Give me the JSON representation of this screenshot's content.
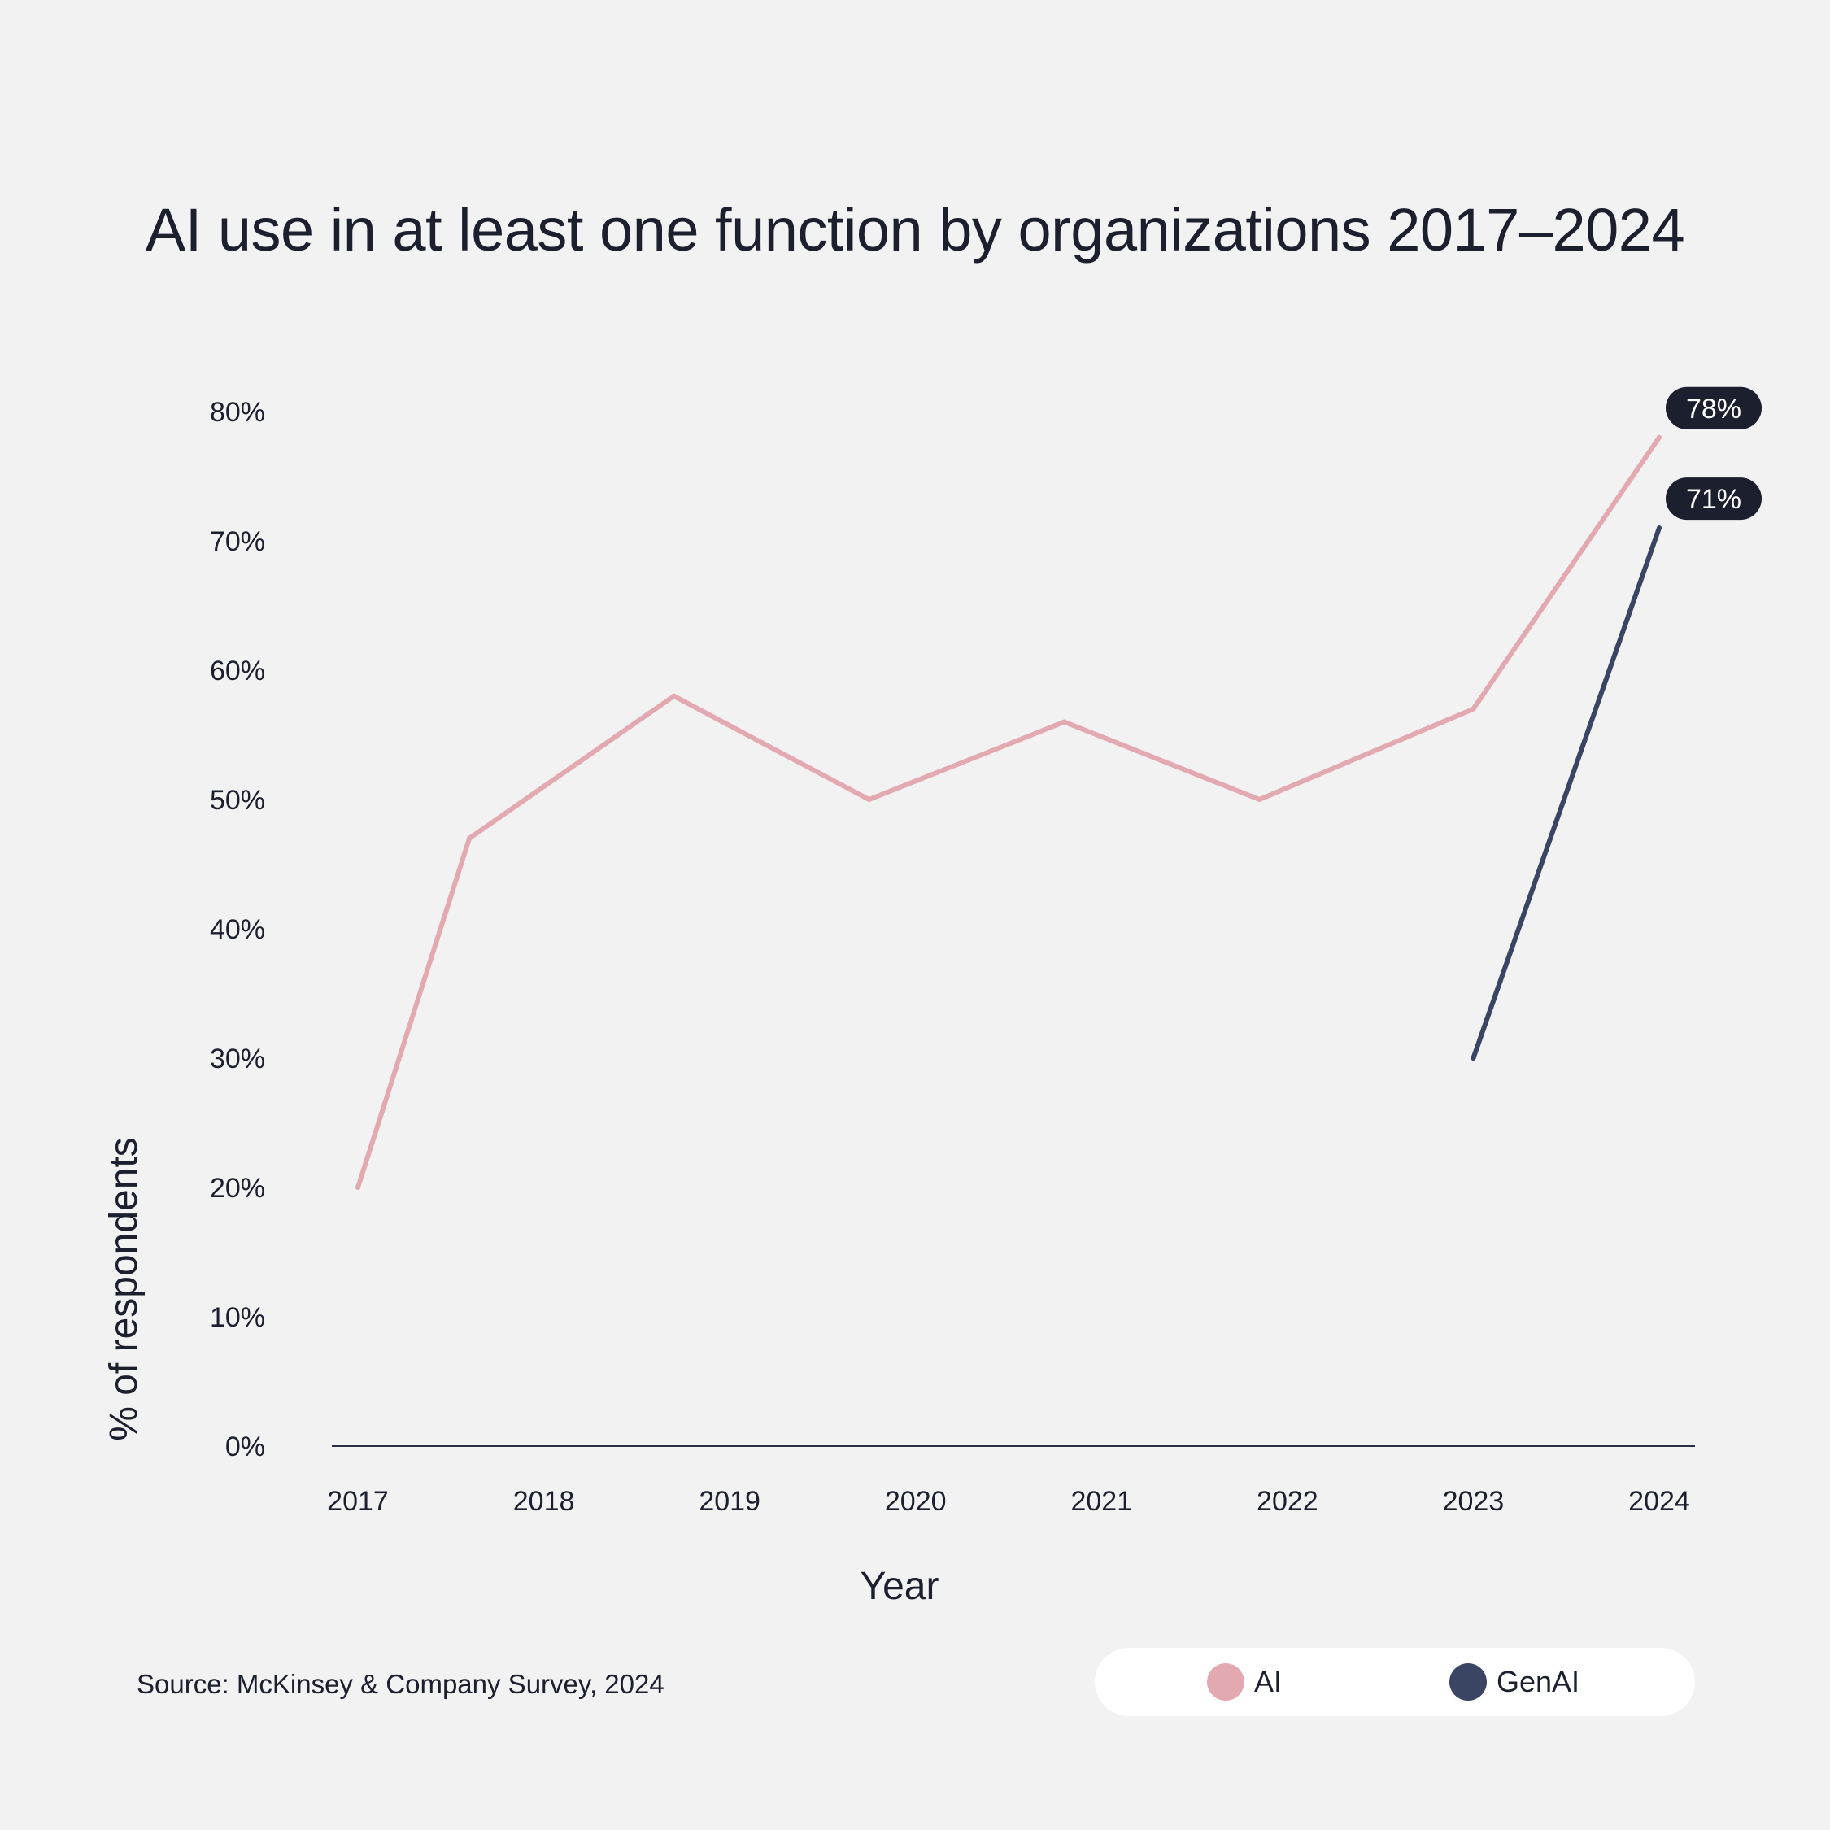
{
  "chart_data": {
    "type": "line",
    "title": "AI use in at least one function by organizations 2017–2024",
    "xlabel": "Year",
    "ylabel": "% of respondents",
    "x": [
      "2017",
      "2018",
      "2019",
      "2020",
      "2021",
      "2022",
      "2023",
      "2024"
    ],
    "x_values": [
      2017,
      2018,
      2019,
      2020,
      2021,
      2022,
      2023,
      2024
    ],
    "yticks": [
      "0%",
      "10%",
      "20%",
      "30%",
      "40%",
      "50%",
      "60%",
      "70%",
      "80%"
    ],
    "ylim": [
      0,
      80
    ],
    "grid": false,
    "series": [
      {
        "name": "AI",
        "color": "#e3a9b0",
        "points": [
          {
            "x": 2017.0,
            "y": 20
          },
          {
            "x": 2017.6,
            "y": 47
          },
          {
            "x": 2018.7,
            "y": 58
          },
          {
            "x": 2019.75,
            "y": 50
          },
          {
            "x": 2020.8,
            "y": 56
          },
          {
            "x": 2021.85,
            "y": 50
          },
          {
            "x": 2023.0,
            "y": 57
          },
          {
            "x": 2024.0,
            "y": 78
          }
        ],
        "end_label": "78%"
      },
      {
        "name": "GenAI",
        "color": "#3a4563",
        "points": [
          {
            "x": 2023.0,
            "y": 30
          },
          {
            "x": 2024.0,
            "y": 71
          }
        ],
        "end_label": "71%"
      }
    ],
    "legend_position": "bottom-right",
    "source": "Source: McKinsey & Company Survey, 2024"
  }
}
